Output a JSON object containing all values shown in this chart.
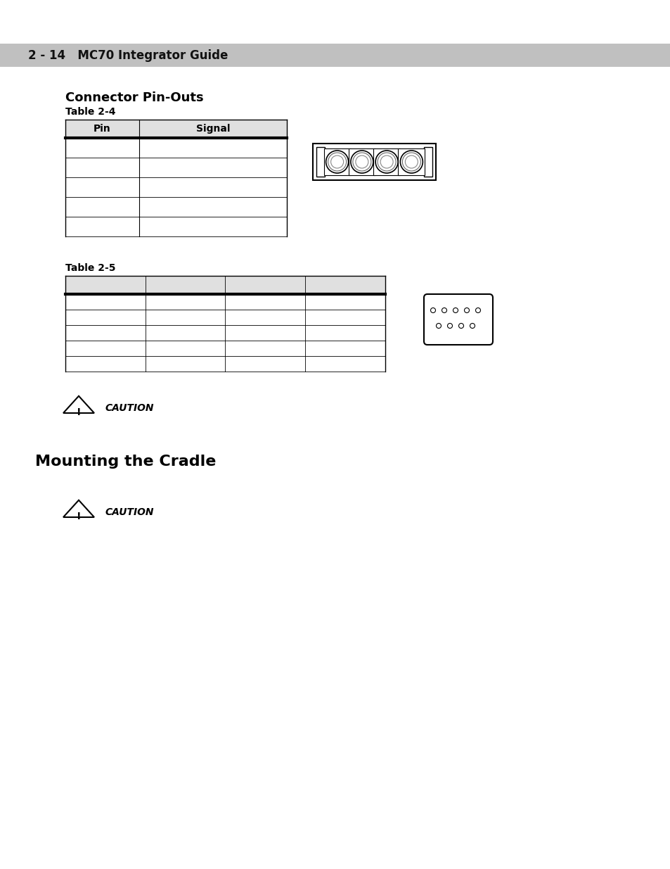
{
  "page_header_text": "2 - 14   MC70 Integrator Guide",
  "page_header_bg": "#c0c0c0",
  "page_bg": "#ffffff",
  "section1_title": "Connector Pin-Outs",
  "table2_4_label": "Table 2-4",
  "table2_4_headers": [
    "Pin",
    "Signal"
  ],
  "table2_4_rows": 5,
  "table2_4_header_bg": "#e0e0e0",
  "table2_5_label": "Table 2-5",
  "table2_5_cols": 4,
  "table2_5_rows": 5,
  "table2_5_header_bg": "#e0e0e0",
  "caution_text": "CAUTION",
  "section2_title": "Mounting the Cradle",
  "caution2_text": "CAUTION",
  "header_font_size": 12,
  "section_title_font_size": 13,
  "table_label_font_size": 10,
  "table_header_font_size": 10,
  "caution_font_size": 10
}
